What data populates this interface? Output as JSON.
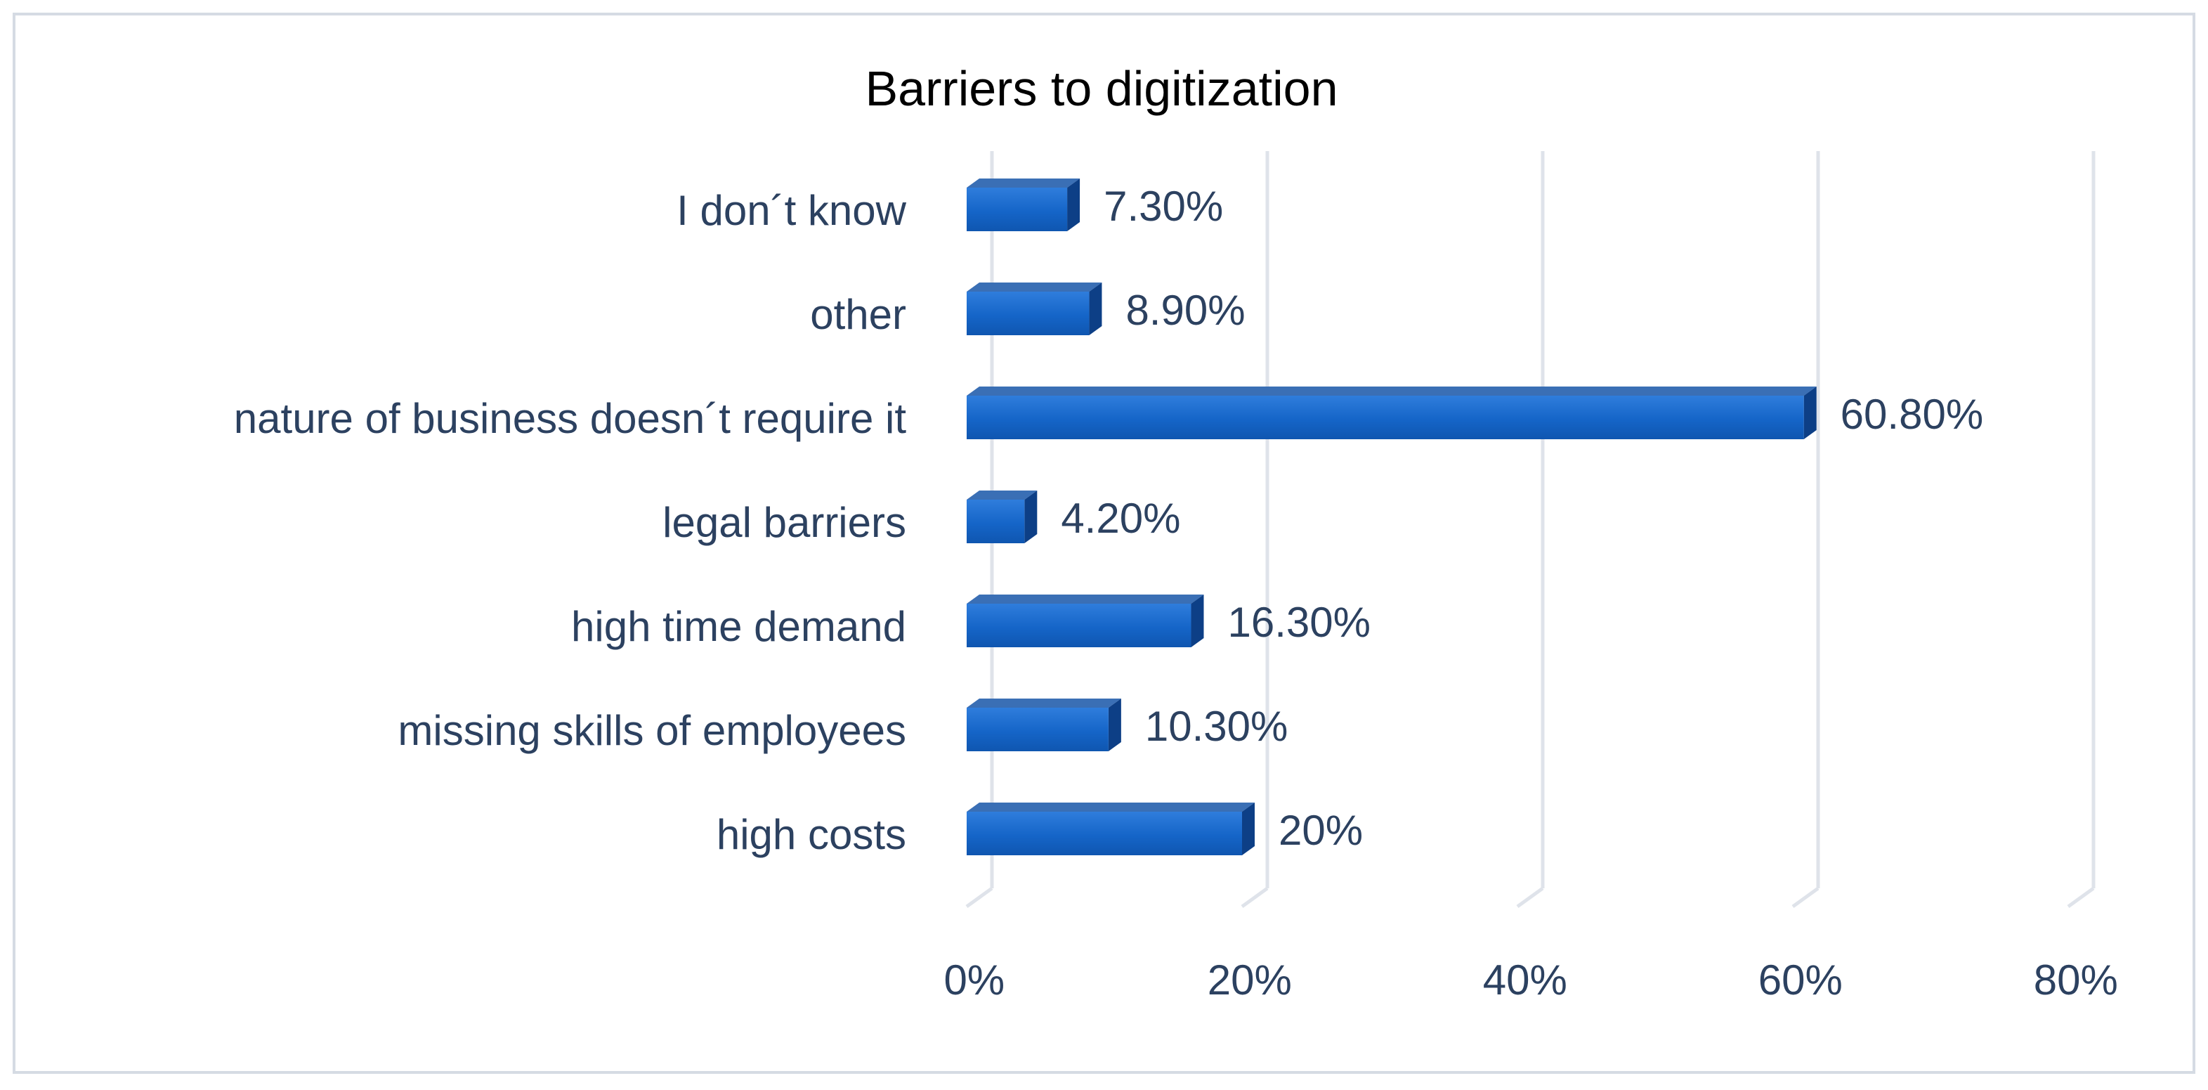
{
  "chart_data": {
    "type": "bar",
    "orientation": "horizontal",
    "title": "Barriers to digitization",
    "xlabel": "",
    "ylabel": "",
    "xlim": [
      0,
      80
    ],
    "x_ticks": [
      0,
      20,
      40,
      60,
      80
    ],
    "x_tick_labels": [
      "0%",
      "20%",
      "40%",
      "60%",
      "80%"
    ],
    "categories": [
      "I don´t know",
      "other",
      "nature of business doesn´t require it",
      "legal barriers",
      "high time demand",
      "missing skills of employees",
      "high costs"
    ],
    "values": [
      7.3,
      8.9,
      60.8,
      4.2,
      16.3,
      10.3,
      20
    ],
    "data_labels": [
      "7.30%",
      "8.90%",
      "60.80%",
      "4.20%",
      "16.30%",
      "10.30%",
      "20%"
    ],
    "grid": true,
    "legend": "none",
    "colors": {
      "bar_front": "#1565c8",
      "bar_front_light": "#2f7ddc",
      "bar_top": "#3a6fb5",
      "bar_side": "#0d3f86",
      "text": "#2c4160",
      "title": "#000000",
      "grid": "#dfe3ea",
      "frame": "#d5dbe3"
    }
  }
}
